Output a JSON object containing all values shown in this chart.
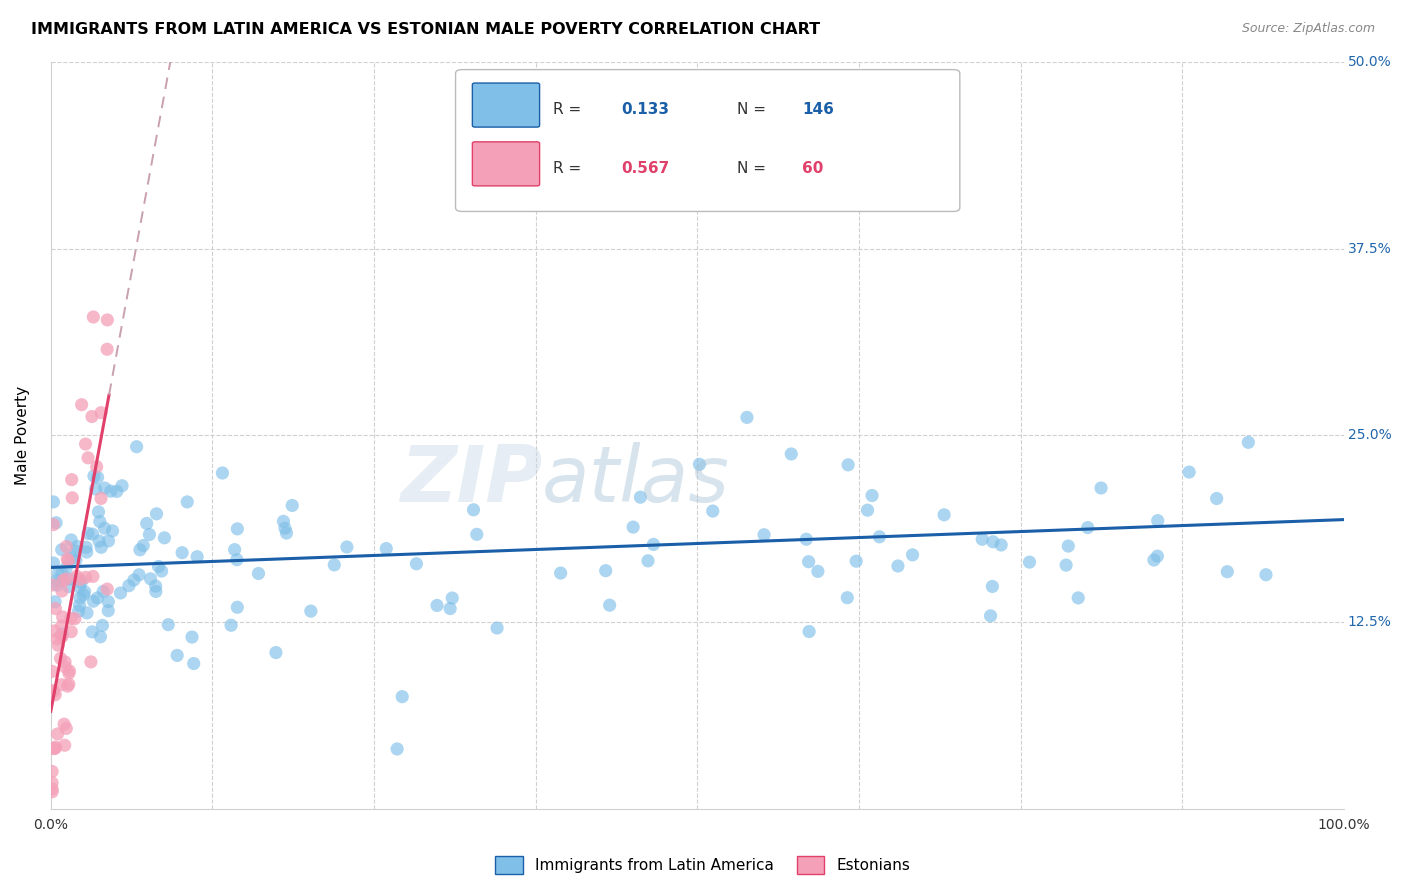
{
  "title": "IMMIGRANTS FROM LATIN AMERICA VS ESTONIAN MALE POVERTY CORRELATION CHART",
  "source": "Source: ZipAtlas.com",
  "ylabel": "Male Poverty",
  "xlim": [
    0,
    1.0
  ],
  "ylim": [
    0,
    0.5
  ],
  "blue_color": "#7fbfe8",
  "pink_color": "#f4a0b8",
  "blue_line_color": "#1a5fa8",
  "pink_line_color": "#e0406a",
  "pink_dash_color": "#c8a0b0",
  "grid_color": "#d0d0d0",
  "legend_r_blue": "0.133",
  "legend_n_blue": "146",
  "legend_r_pink": "0.567",
  "legend_n_pink": "60",
  "legend_text_color": "#333333",
  "right_axis_color": "#2166ac"
}
